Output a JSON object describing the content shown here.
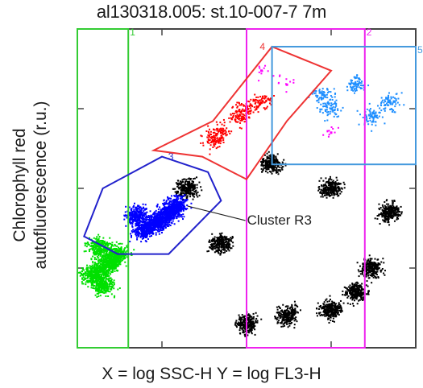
{
  "chart_data": {
    "type": "scatter",
    "title": "al130318.005:  st.10-007-7 7m",
    "xlabel": "X = log SSC-H  Y = log FL3-H",
    "ylabel_lines": [
      "Chlorophyll red",
      "autofluorescence  (r.u.)"
    ],
    "xscale": "log",
    "yscale": "log",
    "xlim": [
      1,
      10000
    ],
    "ylim": [
      1,
      10000
    ],
    "grid": false,
    "series": [
      {
        "color": "#000000",
        "density": "high",
        "points": [
          [
            100,
            2
          ],
          [
            300,
            2.5
          ],
          [
            1000,
            3
          ],
          [
            2000,
            5
          ],
          [
            3000,
            10
          ],
          [
            5000,
            50
          ],
          [
            50,
            20
          ],
          [
            20,
            100
          ],
          [
            200,
            200
          ],
          [
            1000,
            100
          ]
        ]
      },
      {
        "color": "#00e000",
        "density": "high",
        "points": [
          [
            2,
            10
          ],
          [
            1.5,
            8
          ],
          [
            2.5,
            12
          ],
          [
            3,
            15
          ],
          [
            2,
            6
          ],
          [
            1.8,
            18
          ]
        ]
      },
      {
        "color": "#0000ff",
        "density": "high",
        "points": [
          [
            10,
            40
          ],
          [
            12,
            50
          ],
          [
            8,
            35
          ],
          [
            6,
            30
          ],
          [
            15,
            60
          ],
          [
            5,
            45
          ]
        ]
      },
      {
        "color": "#ff0000",
        "density": "medium",
        "points": [
          [
            50,
            500
          ],
          [
            100,
            1000
          ],
          [
            80,
            800
          ],
          [
            150,
            1200
          ],
          [
            40,
            400
          ]
        ]
      },
      {
        "color": "#1f8fff",
        "density": "medium",
        "points": [
          [
            1000,
            1000
          ],
          [
            2000,
            2000
          ],
          [
            800,
            1500
          ],
          [
            3000,
            800
          ],
          [
            5000,
            1200
          ]
        ]
      },
      {
        "color": "#ff00ff",
        "density": "low",
        "points": [
          [
            300,
            2000
          ],
          [
            150,
            3000
          ],
          [
            1000,
            500
          ]
        ]
      }
    ],
    "gates": [
      {
        "label": "1",
        "shape": "rectangle",
        "color": "#33cc33",
        "x": [
          1,
          4
        ],
        "y": [
          1,
          10000
        ]
      },
      {
        "label": "2",
        "shape": "rectangle",
        "color": "#ee22ee",
        "x": [
          100,
          2500
        ],
        "y": [
          1,
          10000
        ]
      },
      {
        "label": "3",
        "shape": "polygon",
        "color": "#2222cc",
        "points": [
          [
            1.2,
            25
          ],
          [
            2,
            100
          ],
          [
            10,
            250
          ],
          [
            35,
            160
          ],
          [
            50,
            70
          ],
          [
            12,
            15
          ],
          [
            3,
            15
          ]
        ]
      },
      {
        "label": "4",
        "shape": "polygon",
        "color": "#ee3333",
        "points": [
          [
            8,
            300
          ],
          [
            40,
            700
          ],
          [
            200,
            6000
          ],
          [
            1000,
            3000
          ],
          [
            300,
            700
          ],
          [
            100,
            130
          ],
          [
            30,
            250
          ]
        ]
      },
      {
        "label": "5",
        "shape": "rectangle",
        "color": "#4499dd",
        "x": [
          200,
          10000
        ],
        "y": [
          200,
          6000
        ]
      }
    ],
    "annotations": [
      {
        "text": "Cluster R3",
        "target": [
          20,
          60
        ]
      }
    ]
  }
}
